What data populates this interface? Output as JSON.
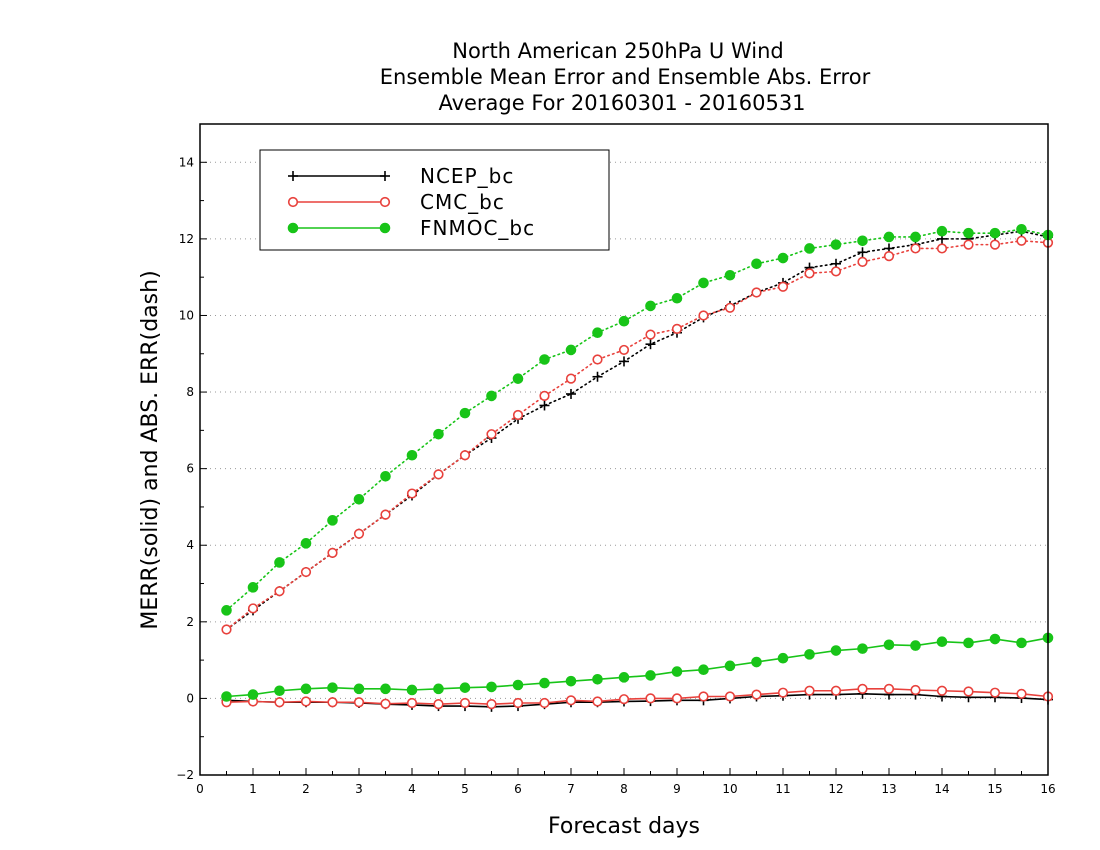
{
  "chart_data": {
    "type": "line",
    "title": [
      "North American 250hPa U Wind",
      "Ensemble Mean Error and Ensemble Abs. Error",
      "Average For 20160301 - 20160531"
    ],
    "xlabel": "Forecast days",
    "ylabel": "MERR(solid) and ABS. ERR(dash)",
    "xlim": [
      0,
      16
    ],
    "ylim": [
      -2,
      15
    ],
    "xticks": [
      0,
      1,
      2,
      3,
      4,
      5,
      6,
      7,
      8,
      9,
      10,
      11,
      12,
      13,
      14,
      15,
      16
    ],
    "yticks": [
      -2,
      0,
      2,
      4,
      6,
      8,
      10,
      12,
      14
    ],
    "grid": "horizontal-dotted",
    "legend_position": "top-left",
    "x": [
      0.5,
      1,
      1.5,
      2,
      2.5,
      3,
      3.5,
      4,
      4.5,
      5,
      5.5,
      6,
      6.5,
      7,
      7.5,
      8,
      8.5,
      9,
      9.5,
      10,
      10.5,
      11,
      11.5,
      12,
      12.5,
      13,
      13.5,
      14,
      14.5,
      15,
      15.5,
      16
    ],
    "series": [
      {
        "name": "NCEP_bc",
        "color": "#000000",
        "marker": "plus",
        "mean_error": [
          -0.05,
          -0.08,
          -0.1,
          -0.1,
          -0.1,
          -0.12,
          -0.15,
          -0.17,
          -0.2,
          -0.2,
          -0.22,
          -0.2,
          -0.15,
          -0.1,
          -0.1,
          -0.08,
          -0.07,
          -0.05,
          -0.05,
          0.0,
          0.05,
          0.07,
          0.1,
          0.1,
          0.12,
          0.1,
          0.1,
          0.05,
          0.03,
          0.03,
          0.01,
          -0.03
        ],
        "abs_error": [
          1.8,
          2.3,
          2.8,
          3.3,
          3.8,
          4.3,
          4.8,
          5.3,
          5.85,
          6.35,
          6.8,
          7.3,
          7.65,
          7.95,
          8.4,
          8.8,
          9.25,
          9.55,
          9.95,
          10.25,
          10.6,
          10.85,
          11.25,
          11.35,
          11.65,
          11.75,
          11.85,
          12.0,
          12.0,
          12.1,
          12.2,
          12.05
        ]
      },
      {
        "name": "CMC_bc",
        "color": "#e8413c",
        "marker": "open-circle",
        "mean_error": [
          -0.1,
          -0.08,
          -0.1,
          -0.08,
          -0.1,
          -0.1,
          -0.14,
          -0.12,
          -0.15,
          -0.12,
          -0.15,
          -0.12,
          -0.12,
          -0.05,
          -0.08,
          -0.02,
          0.0,
          0.0,
          0.05,
          0.05,
          0.1,
          0.15,
          0.2,
          0.2,
          0.25,
          0.25,
          0.22,
          0.2,
          0.18,
          0.15,
          0.12,
          0.05
        ],
        "abs_error": [
          1.8,
          2.35,
          2.8,
          3.3,
          3.8,
          4.3,
          4.8,
          5.35,
          5.85,
          6.35,
          6.9,
          7.4,
          7.9,
          8.35,
          8.85,
          9.1,
          9.5,
          9.65,
          10.0,
          10.2,
          10.6,
          10.75,
          11.1,
          11.15,
          11.4,
          11.55,
          11.75,
          11.75,
          11.85,
          11.85,
          11.95,
          11.9
        ]
      },
      {
        "name": "FNMOC_bc",
        "color": "#18c418",
        "marker": "filled-circle",
        "mean_error": [
          0.05,
          0.1,
          0.2,
          0.25,
          0.28,
          0.25,
          0.25,
          0.22,
          0.25,
          0.28,
          0.3,
          0.35,
          0.4,
          0.45,
          0.5,
          0.55,
          0.6,
          0.7,
          0.75,
          0.85,
          0.95,
          1.05,
          1.15,
          1.25,
          1.3,
          1.4,
          1.38,
          1.48,
          1.45,
          1.55,
          1.45,
          1.58
        ],
        "abs_error": [
          2.3,
          2.9,
          3.55,
          4.05,
          4.65,
          5.2,
          5.8,
          6.35,
          6.9,
          7.45,
          7.9,
          8.35,
          8.85,
          9.1,
          9.55,
          9.85,
          10.25,
          10.45,
          10.85,
          11.05,
          11.35,
          11.5,
          11.75,
          11.85,
          11.95,
          12.05,
          12.05,
          12.2,
          12.15,
          12.15,
          12.25,
          12.1
        ]
      }
    ]
  }
}
